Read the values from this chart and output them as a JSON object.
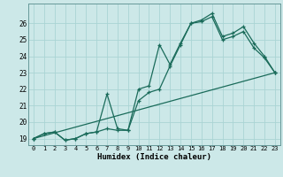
{
  "xlabel": "Humidex (Indice chaleur)",
  "background_color": "#cce8e8",
  "grid_color": "#aad4d4",
  "line_color": "#1a6b5a",
  "xlim": [
    -0.5,
    23.5
  ],
  "ylim": [
    18.6,
    27.2
  ],
  "xticks": [
    0,
    1,
    2,
    3,
    4,
    5,
    6,
    7,
    8,
    9,
    10,
    11,
    12,
    13,
    14,
    15,
    16,
    17,
    18,
    19,
    20,
    21,
    22,
    23
  ],
  "yticks": [
    19,
    20,
    21,
    22,
    23,
    24,
    25,
    26
  ],
  "line1_x": [
    0,
    1,
    2,
    3,
    4,
    5,
    6,
    7,
    8,
    9,
    10,
    11,
    12,
    13,
    14,
    15,
    16,
    17,
    18,
    19,
    20,
    21,
    22,
    23
  ],
  "line1_y": [
    19.0,
    19.3,
    19.4,
    18.9,
    19.0,
    19.3,
    19.4,
    21.7,
    19.6,
    19.5,
    22.0,
    22.2,
    24.7,
    23.5,
    24.8,
    26.0,
    26.2,
    26.6,
    25.2,
    25.4,
    25.8,
    24.8,
    24.0,
    23.0
  ],
  "line2_x": [
    0,
    1,
    2,
    3,
    4,
    5,
    6,
    7,
    8,
    9,
    10,
    11,
    12,
    13,
    14,
    15,
    16,
    17,
    18,
    19,
    20,
    21,
    22,
    23
  ],
  "line2_y": [
    19.0,
    19.3,
    19.4,
    18.9,
    19.0,
    19.3,
    19.4,
    19.6,
    19.5,
    19.5,
    21.3,
    21.8,
    22.0,
    23.4,
    24.7,
    26.0,
    26.1,
    26.4,
    25.0,
    25.2,
    25.5,
    24.5,
    23.9,
    23.0
  ],
  "line3_x": [
    0,
    23
  ],
  "line3_y": [
    19.0,
    23.0
  ]
}
